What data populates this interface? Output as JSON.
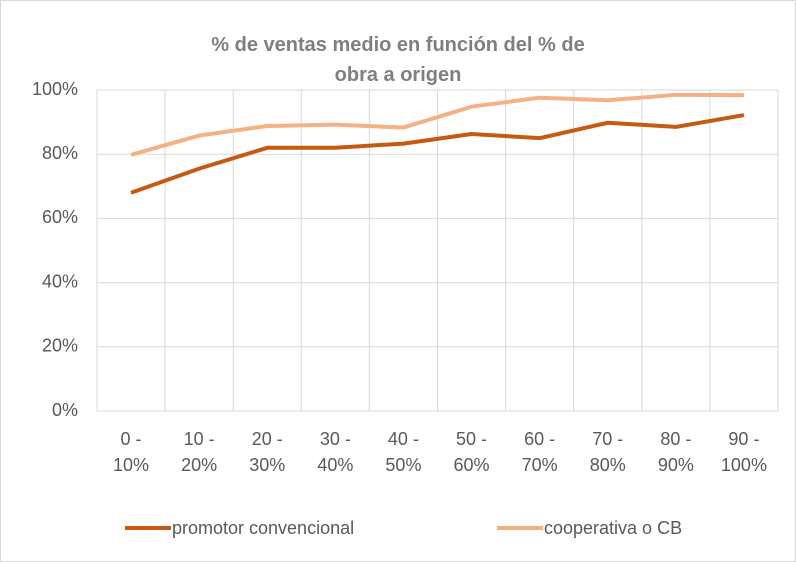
{
  "chart_data": {
    "type": "line",
    "title": "% de ventas medio en función del % de obra a origen",
    "categories": [
      "0 - 10%",
      "10 - 20%",
      "20 - 30%",
      "30 - 40%",
      "40 - 50%",
      "50 - 60%",
      "60 - 70%",
      "70 - 80%",
      "80 - 90%",
      "90 - 100%"
    ],
    "series": [
      {
        "name": "promotor convencional",
        "color": "#c55a11",
        "values": [
          68,
          75.5,
          82,
          82,
          83.3,
          86.3,
          85,
          89.8,
          88.5,
          92.2
        ]
      },
      {
        "name": "cooperativa o CB",
        "color": "#f4b183",
        "values": [
          79.8,
          85.8,
          88.8,
          89.2,
          88.3,
          94.8,
          97.6,
          96.8,
          98.5,
          98.4
        ]
      }
    ],
    "ylim": [
      0,
      100
    ],
    "yticks": [
      {
        "value": 0,
        "label": "0%"
      },
      {
        "value": 20,
        "label": "20%"
      },
      {
        "value": 40,
        "label": "40%"
      },
      {
        "value": 60,
        "label": "60%"
      },
      {
        "value": 80,
        "label": "80%"
      },
      {
        "value": 100,
        "label": "100%"
      }
    ],
    "grid": true,
    "legend": "bottom"
  }
}
